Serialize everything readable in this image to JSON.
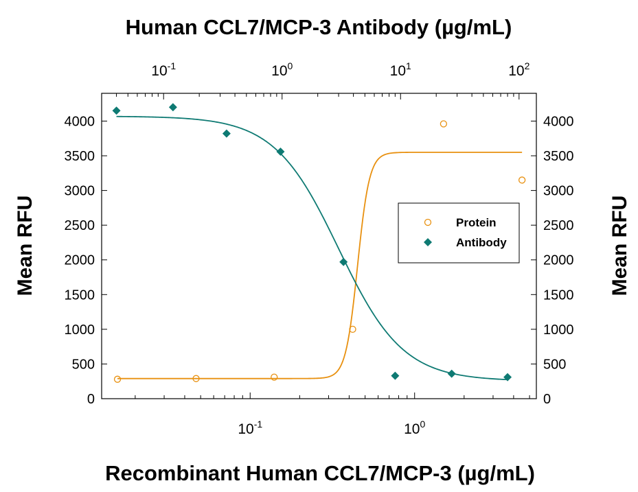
{
  "chart_data": {
    "type": "scatter",
    "title": "Human CCL7/MCP-3 Antibody (µg/mL)",
    "xlabel": "Recombinant Human CCL7/MCP-3 (µg/mL)",
    "ylabel_left": "Mean RFU",
    "ylabel_right": "Mean RFU",
    "xscale": "log",
    "x_bottom_lim": [
      0.0125,
      5.5
    ],
    "x_top_lim": [
      0.03,
      140
    ],
    "ylim": [
      0,
      4400
    ],
    "y_ticks": [
      0,
      500,
      1000,
      1500,
      2000,
      2500,
      3000,
      3500,
      4000
    ],
    "y_tick_labels": [
      "0",
      "500",
      "1000",
      "1500",
      "2000",
      "2500",
      "3000",
      "3500",
      "4000"
    ],
    "x_bottom_ticks": [
      {
        "value": 0.1,
        "base": "10",
        "exp": "-1"
      },
      {
        "value": 1,
        "base": "10",
        "exp": "0"
      }
    ],
    "x_top_ticks": [
      {
        "value": 0.1,
        "base": "10",
        "exp": "-1"
      },
      {
        "value": 1,
        "base": "10",
        "exp": "0"
      },
      {
        "value": 10,
        "base": "10",
        "exp": "1"
      },
      {
        "value": 100,
        "base": "10",
        "exp": "2"
      }
    ],
    "legend": {
      "position": "right",
      "entries": [
        "Protein",
        "Antibody"
      ]
    },
    "grid": false,
    "series": [
      {
        "name": "Protein",
        "axis": "bottom",
        "marker": "open-circle",
        "color": "#e8900f",
        "points": [
          {
            "x": 0.0156,
            "y": 280
          },
          {
            "x": 0.0469,
            "y": 290
          },
          {
            "x": 0.14,
            "y": 310
          },
          {
            "x": 0.42,
            "y": 1000
          },
          {
            "x": 1.5,
            "y": 3960
          },
          {
            "x": 4.5,
            "y": 3150
          }
        ],
        "fit": {
          "bottom": 290,
          "top": 3550,
          "ec50": 0.45,
          "hill": 12,
          "x_range": [
            0.0156,
            4.5
          ]
        }
      },
      {
        "name": "Antibody",
        "axis": "top",
        "marker": "filled-diamond",
        "color": "#0e7a73",
        "points": [
          {
            "x": 0.04,
            "y": 4150
          },
          {
            "x": 0.12,
            "y": 4200
          },
          {
            "x": 0.34,
            "y": 3820
          },
          {
            "x": 0.97,
            "y": 3560
          },
          {
            "x": 3.3,
            "y": 1970
          },
          {
            "x": 9.0,
            "y": 330
          },
          {
            "x": 27,
            "y": 360
          },
          {
            "x": 80,
            "y": 310
          }
        ],
        "fit": {
          "bottom": 255,
          "top": 4070,
          "ic50": 3.0,
          "hill": 1.6,
          "x_range": [
            0.04,
            80
          ]
        }
      }
    ]
  }
}
